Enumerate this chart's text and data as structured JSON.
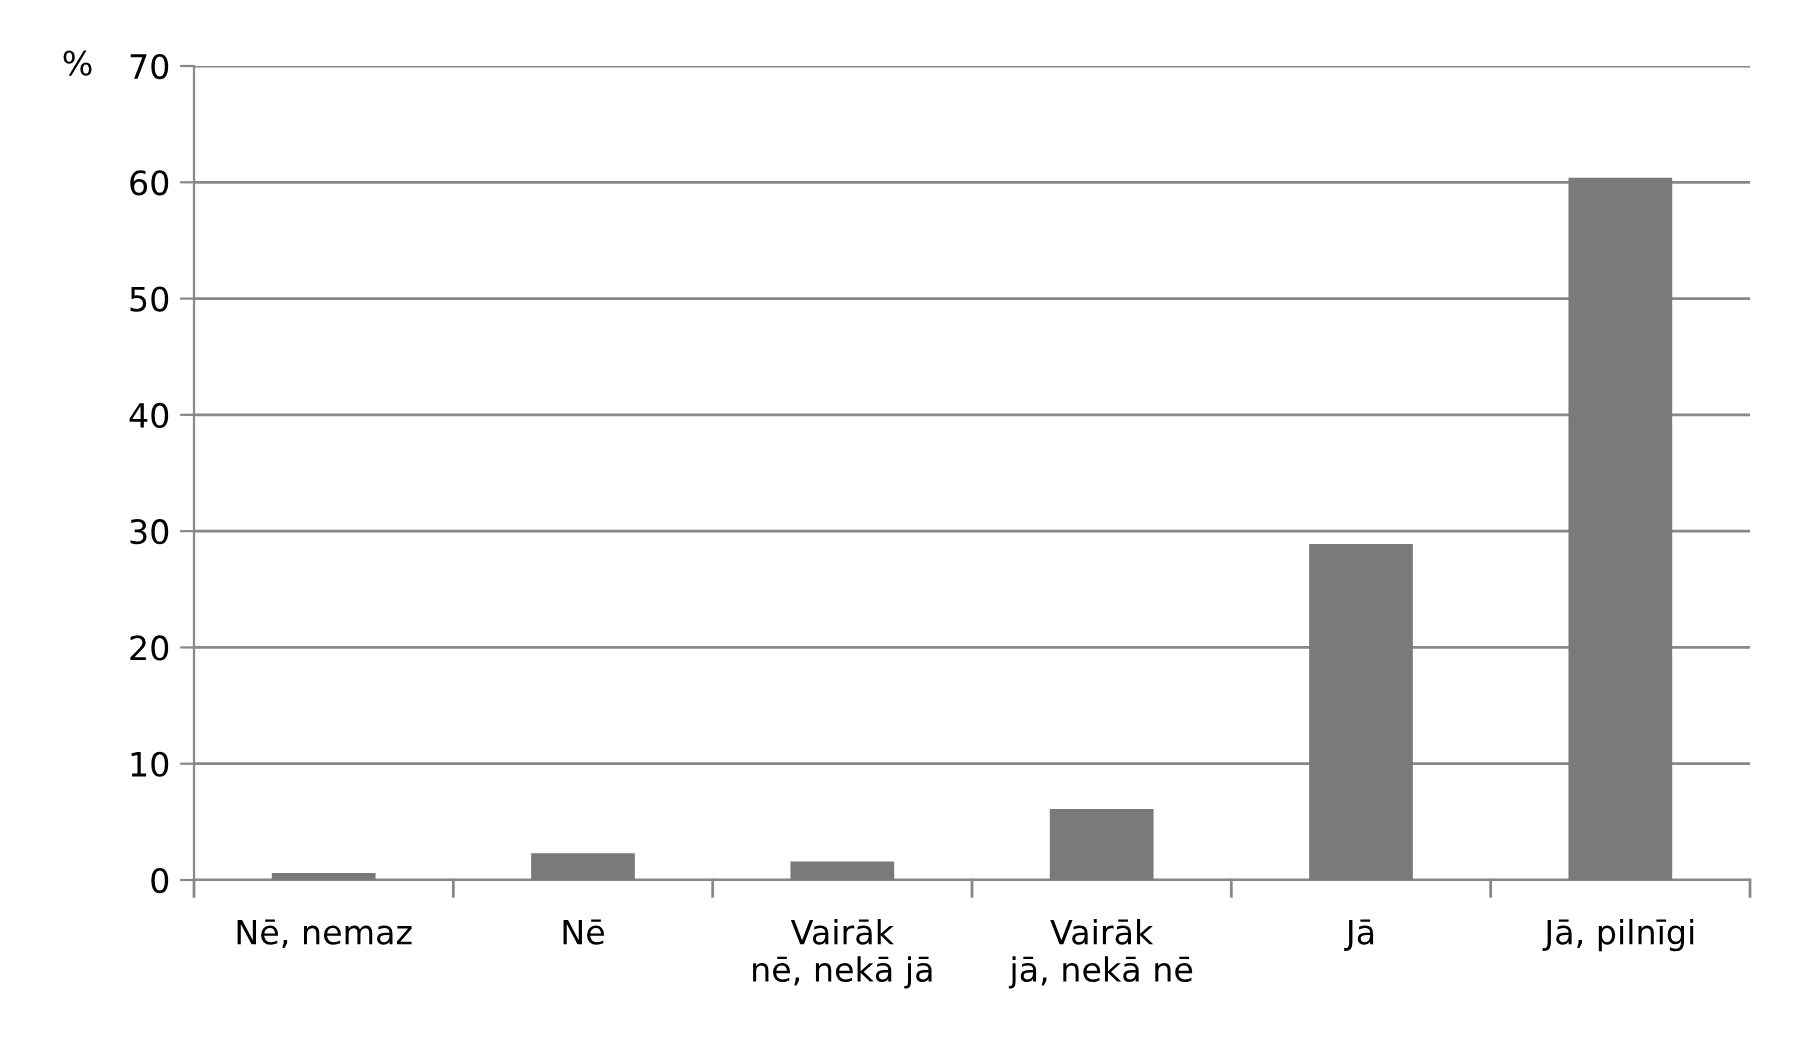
{
  "chart_data": {
    "type": "bar",
    "ylabel": "%",
    "categories": [
      "Nē, nemaz",
      "Nē",
      "Vairāk\nnē, nekā jā",
      "Vairāk\njā, nekā nē",
      "Jā",
      "Jā, pilnīgi"
    ],
    "values": [
      0.6,
      2.3,
      1.6,
      6.1,
      28.9,
      60.4
    ],
    "color": "#7a7a7a",
    "ylim": [
      0,
      70
    ],
    "yticks": [
      0,
      10,
      20,
      30,
      40,
      50,
      60,
      70
    ],
    "grid": "y",
    "legend": false
  }
}
